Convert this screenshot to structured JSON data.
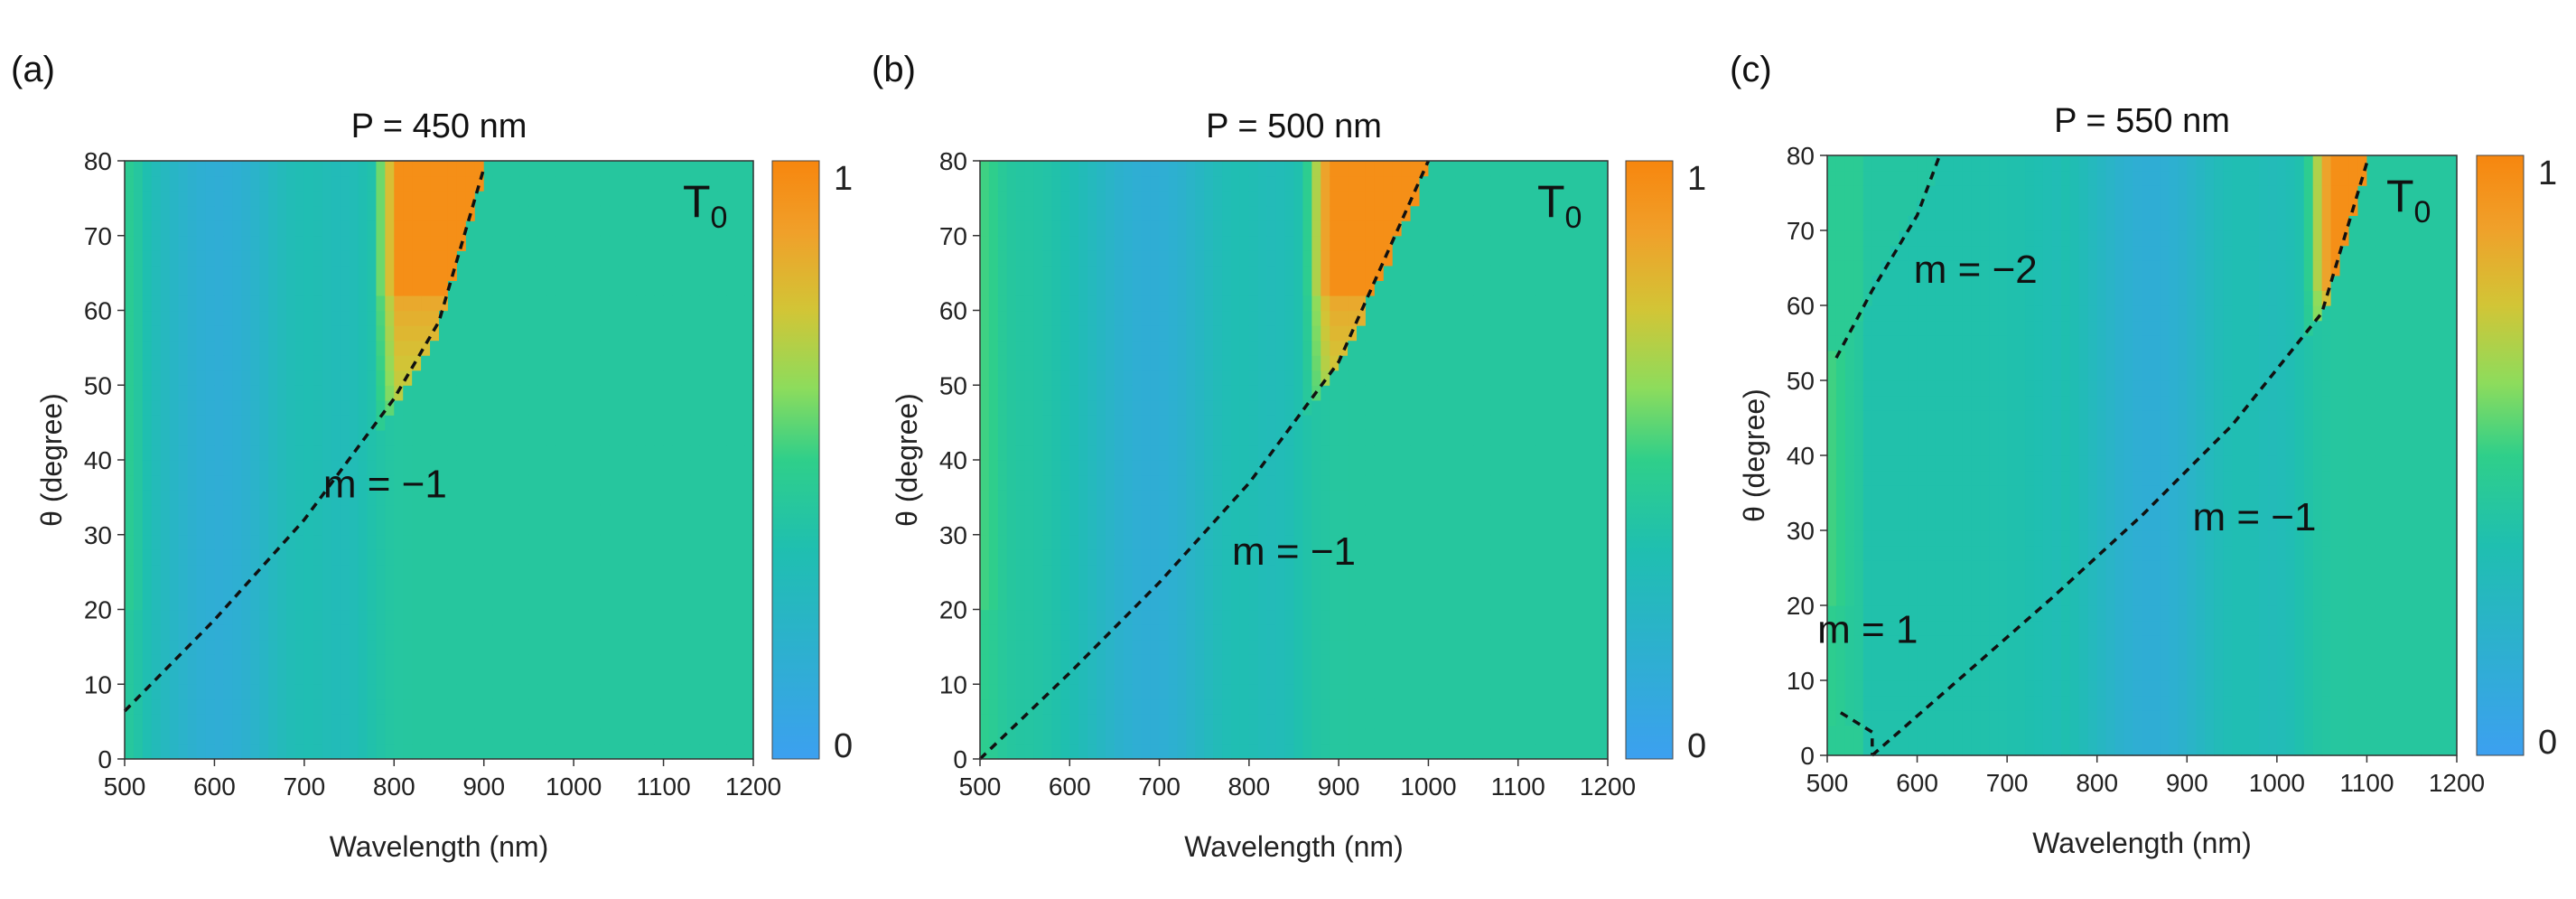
{
  "chart_data": [
    {
      "type": "heatmap",
      "panel_label": "(a)",
      "title": "P = 450 nm",
      "xlabel": "Wavelength (nm)",
      "ylabel": "θ (degree)",
      "xlim": [
        500,
        1200
      ],
      "ylim": [
        0,
        80
      ],
      "xticks": [
        "500",
        "600",
        "700",
        "800",
        "900",
        "1000",
        "1100",
        "1200"
      ],
      "yticks": [
        "0",
        "10",
        "20",
        "30",
        "40",
        "50",
        "60",
        "70",
        "80"
      ],
      "colorbar": {
        "min_label": "0",
        "max_label": "1"
      },
      "corner_label": "T",
      "corner_label_sub": "0",
      "period_nm": 450,
      "cutoff_wavelength_nm": 775,
      "annotations": [
        {
          "text": "m = −1",
          "x": 790,
          "y": 35
        }
      ],
      "dashed_curves": [
        {
          "order": -1,
          "points": [
            [
              500,
              6.4
            ],
            [
              600,
              18.6
            ],
            [
              700,
              32.0
            ],
            [
              800,
              48.2
            ],
            [
              850,
              58.5
            ],
            [
              900,
              79.0
            ]
          ]
        }
      ]
    },
    {
      "type": "heatmap",
      "panel_label": "(b)",
      "title": "P = 500 nm",
      "xlabel": "Wavelength (nm)",
      "ylabel": "θ (degree)",
      "xlim": [
        500,
        1200
      ],
      "ylim": [
        0,
        80
      ],
      "xticks": [
        "500",
        "600",
        "700",
        "800",
        "900",
        "1000",
        "1100",
        "1200"
      ],
      "yticks": [
        "0",
        "10",
        "20",
        "30",
        "40",
        "50",
        "60",
        "70",
        "80"
      ],
      "colorbar": {
        "min_label": "0",
        "max_label": "1"
      },
      "corner_label": "T",
      "corner_label_sub": "0",
      "period_nm": 500,
      "cutoff_wavelength_nm": 860,
      "annotations": [
        {
          "text": "m = −1",
          "x": 850,
          "y": 26
        }
      ],
      "dashed_curves": [
        {
          "order": -1,
          "points": [
            [
              500,
              0
            ],
            [
              600,
              11.5
            ],
            [
              700,
              23.6
            ],
            [
              800,
              36.9
            ],
            [
              900,
              53.1
            ],
            [
              1000,
              80.0
            ]
          ]
        }
      ]
    },
    {
      "type": "heatmap",
      "panel_label": "(c)",
      "title": "P = 550 nm",
      "xlabel": "Wavelength (nm)",
      "ylabel": "θ (degree)",
      "xlim": [
        500,
        1200
      ],
      "ylim": [
        0,
        80
      ],
      "xticks": [
        "500",
        "600",
        "700",
        "800",
        "900",
        "1000",
        "1100",
        "1200"
      ],
      "yticks": [
        "0",
        "10",
        "20",
        "30",
        "40",
        "50",
        "60",
        "70",
        "80"
      ],
      "colorbar": {
        "min_label": "0",
        "max_label": "1"
      },
      "corner_label": "T",
      "corner_label_sub": "0",
      "period_nm": 550,
      "cutoff_wavelength_nm": 1030,
      "annotations": [
        {
          "text": "m = −2",
          "x": 665,
          "y": 63
        },
        {
          "text": "m = −1",
          "x": 975,
          "y": 30
        },
        {
          "text": "m = 1",
          "x": 545,
          "y": 15
        }
      ],
      "dashed_curves": [
        {
          "order": -1,
          "points": [
            [
              550,
              0
            ],
            [
              650,
              10.5
            ],
            [
              750,
              21.0
            ],
            [
              850,
              32.0
            ],
            [
              950,
              44.0
            ],
            [
              1050,
              59.0
            ],
            [
              1100,
              79.0
            ]
          ]
        },
        {
          "order": 1,
          "points": [
            [
              515,
              5.7
            ],
            [
              550,
              3.1
            ],
            [
              550,
              0
            ]
          ]
        },
        {
          "order": -2,
          "points": [
            [
              510,
              53.0
            ],
            [
              550,
              62.0
            ],
            [
              600,
              72.0
            ],
            [
              625,
              80.0
            ]
          ]
        }
      ]
    }
  ]
}
